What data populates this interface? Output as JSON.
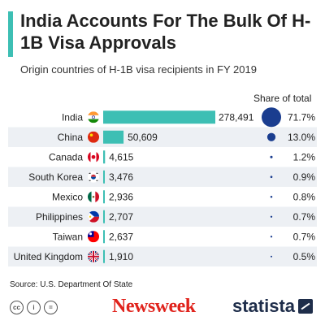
{
  "header": {
    "title": "India Accounts For The Bulk Of H-1B Visa Approvals",
    "subtitle": "Origin countries of H-1B visa recipients in FY 2019",
    "accent_color": "#3dbfb4"
  },
  "share_header": "Share of total",
  "chart_data": {
    "type": "bar",
    "orientation": "horizontal",
    "categories": [
      "India",
      "China",
      "Canada",
      "South Korea",
      "Mexico",
      "Philippines",
      "Taiwan",
      "United Kingdom"
    ],
    "values": [
      278491,
      50609,
      4615,
      3476,
      2936,
      2707,
      2637,
      1910
    ],
    "value_labels": [
      "278,491",
      "50,609",
      "4,615",
      "3,476",
      "2,936",
      "2,707",
      "2,637",
      "1,910"
    ],
    "share": [
      71.7,
      13.0,
      1.2,
      0.9,
      0.8,
      0.7,
      0.7,
      0.5
    ],
    "share_labels": [
      "71.7%",
      "13.0%",
      "1.2%",
      "0.9%",
      "0.8%",
      "0.7%",
      "0.7%",
      "0.5%"
    ],
    "flags": [
      "flag-india",
      "flag-china",
      "flag-canada",
      "flag-south-korea",
      "flag-mexico",
      "flag-philippines",
      "flag-taiwan",
      "flag-united-kingdom"
    ],
    "bar_color": "#3dbfb4",
    "dot_color": "#1a3d8f",
    "row_stripe_color": "#edf0f4"
  },
  "footer": {
    "source": "Source: U.S. Department Of State",
    "license_icons": [
      "cc-icon",
      "by-icon",
      "nd-icon"
    ],
    "newsweek_logo": "Newsweek",
    "newsweek_color": "#e0231c",
    "statista_logo": "statista"
  }
}
